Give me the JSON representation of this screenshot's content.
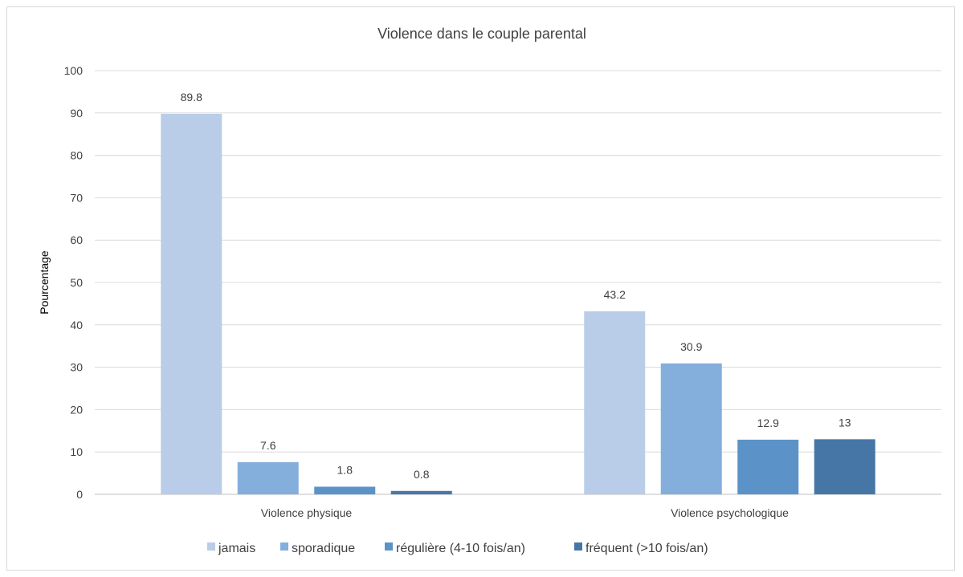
{
  "chart_data": {
    "type": "bar",
    "title": "Violence dans le couple parental",
    "xlabel": "",
    "ylabel": "Pourcentage",
    "ylim": [
      0,
      100
    ],
    "yticks": [
      0,
      10,
      20,
      30,
      40,
      50,
      60,
      70,
      80,
      90,
      100
    ],
    "grid": true,
    "legend_position": "bottom",
    "categories": [
      "Violence physique",
      "Violence psychologique"
    ],
    "series": [
      {
        "name": "jamais",
        "color": "#b9cde8",
        "values": [
          89.8,
          43.2
        ]
      },
      {
        "name": "sporadique",
        "color": "#84aedb",
        "values": [
          7.6,
          30.9
        ]
      },
      {
        "name": "régulière (4-10 fois/an)",
        "color": "#5b93c8",
        "values": [
          1.8,
          12.9
        ]
      },
      {
        "name": "fréquent (>10 fois/an)",
        "color": "#4676a6",
        "values": [
          0.8,
          13
        ]
      }
    ],
    "data_labels": [
      [
        "89.8",
        "7.6",
        "1.8",
        "0.8"
      ],
      [
        "43.2",
        "30.9",
        "12.9",
        "13"
      ]
    ],
    "show_zero_series_bar": [
      true,
      true
    ]
  }
}
